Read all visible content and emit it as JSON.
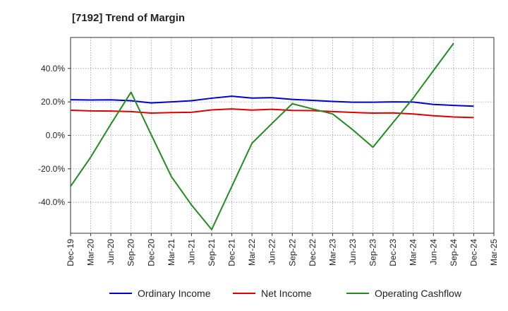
{
  "chart_data": {
    "type": "line",
    "title": "[7192]  Trend of Margin",
    "xlabel": "",
    "ylabel": "",
    "x": [
      "Dec-19",
      "Mar-20",
      "Jun-20",
      "Sep-20",
      "Dec-20",
      "Mar-21",
      "Jun-21",
      "Sep-21",
      "Dec-21",
      "Mar-22",
      "Jun-22",
      "Sep-22",
      "Dec-22",
      "Mar-23",
      "Jun-23",
      "Sep-23",
      "Dec-23",
      "Mar-24",
      "Jun-24",
      "Sep-24",
      "Dec-24",
      "Mar-25"
    ],
    "ylim": [
      -58.5,
      58.5
    ],
    "yticks": [
      40,
      20,
      0,
      -20,
      -40
    ],
    "ytick_labels": [
      "40.0%",
      "20.0%",
      "0.0%",
      "-20.0%",
      "-40.0%"
    ],
    "grid": true,
    "legend_position": "bottom",
    "series": [
      {
        "name": "Ordinary Income",
        "color": "#0000cc",
        "values": [
          21.3,
          21.1,
          21.2,
          20.7,
          19.4,
          20.0,
          20.7,
          22.2,
          23.4,
          22.3,
          22.5,
          21.5,
          20.9,
          20.3,
          19.8,
          19.8,
          20.0,
          19.9,
          18.5,
          17.9,
          17.4,
          null
        ]
      },
      {
        "name": "Net Income",
        "color": "#dd0000",
        "values": [
          15.0,
          14.6,
          14.5,
          14.2,
          13.3,
          13.6,
          13.8,
          15.2,
          15.8,
          15.1,
          15.6,
          14.9,
          14.8,
          14.2,
          13.7,
          13.3,
          13.4,
          12.8,
          11.7,
          11.0,
          10.6,
          null
        ]
      },
      {
        "name": "Operating Cashflow",
        "color": "#228b22",
        "values": [
          -30.5,
          -13.0,
          6.7,
          25.8,
          0.4,
          -24.6,
          -41.6,
          -56.3,
          -30.5,
          -4.7,
          7.2,
          18.9,
          15.8,
          12.8,
          3.3,
          -7.1,
          7.7,
          22.3,
          38.7,
          55.0,
          null,
          null
        ]
      }
    ]
  }
}
